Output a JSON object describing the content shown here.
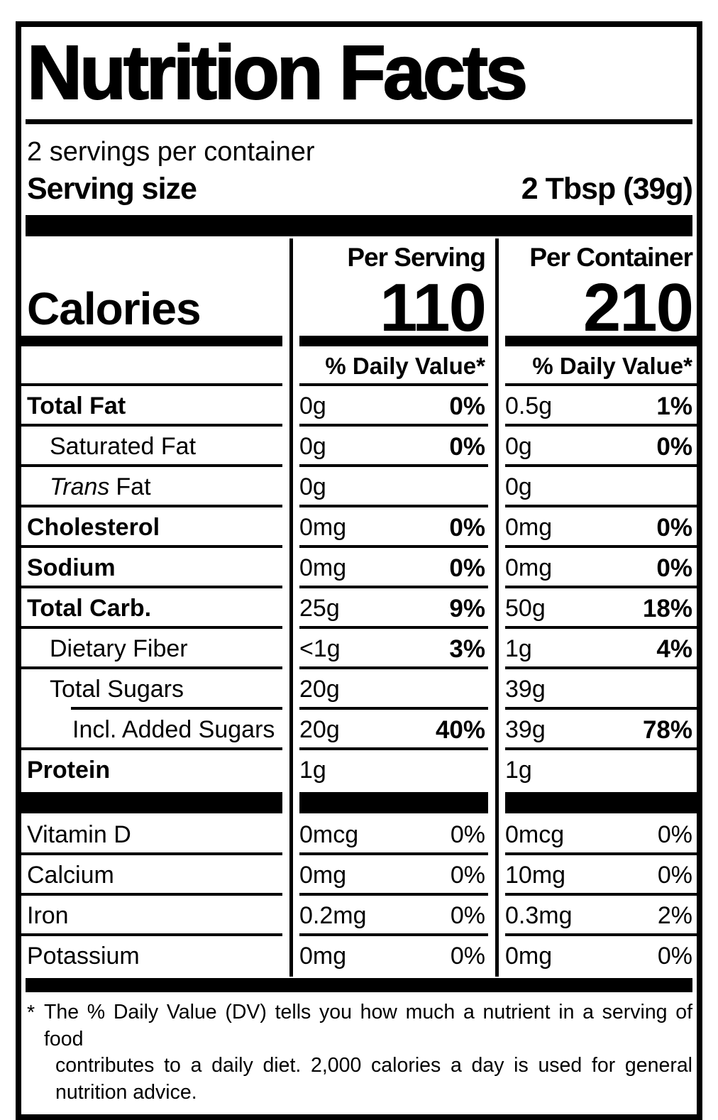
{
  "label": {
    "title": "Nutrition Facts",
    "servings_per_container": "2 servings per container",
    "serving_size_label": "Serving size",
    "serving_size_value": "2 Tbsp (39g)",
    "calories_label": "Calories",
    "calories_serving": "110",
    "calories_container": "210",
    "columns": {
      "serving": "Per Serving",
      "container": "Per Container"
    },
    "daily_value_header": "% Daily Value*",
    "rows": [
      {
        "name": "Total Fat",
        "serving_amount": "0g",
        "serving_dv": "0%",
        "container_amount": "0.5g",
        "container_dv": "1%"
      },
      {
        "name": "Saturated Fat",
        "serving_amount": "0g",
        "serving_dv": "0%",
        "container_amount": "0g",
        "container_dv": "0%"
      },
      {
        "name_italic": "Trans",
        "name": "Fat",
        "serving_amount": "0g",
        "serving_dv": "",
        "container_amount": "0g",
        "container_dv": ""
      },
      {
        "name": "Cholesterol",
        "serving_amount": "0mg",
        "serving_dv": "0%",
        "container_amount": "0mg",
        "container_dv": "0%"
      },
      {
        "name": "Sodium",
        "serving_amount": "0mg",
        "serving_dv": "0%",
        "container_amount": "0mg",
        "container_dv": "0%"
      },
      {
        "name": "Total Carb.",
        "serving_amount": "25g",
        "serving_dv": "9%",
        "container_amount": "50g",
        "container_dv": "18%"
      },
      {
        "name": "Dietary Fiber",
        "serving_amount": "<1g",
        "serving_dv": "3%",
        "container_amount": "1g",
        "container_dv": "4%"
      },
      {
        "name": "Total Sugars",
        "serving_amount": "20g",
        "serving_dv": "",
        "container_amount": "39g",
        "container_dv": ""
      },
      {
        "name": "Incl. Added Sugars",
        "serving_amount": "20g",
        "serving_dv": "40%",
        "container_amount": "39g",
        "container_dv": "78%"
      },
      {
        "name": "Protein",
        "serving_amount": "1g",
        "serving_dv": "",
        "container_amount": "1g",
        "container_dv": ""
      }
    ],
    "vitamin_rows": [
      {
        "name": "Vitamin D",
        "serving_amount": "0mcg",
        "serving_dv": "0%",
        "container_amount": "0mcg",
        "container_dv": "0%"
      },
      {
        "name": "Calcium",
        "serving_amount": "0mg",
        "serving_dv": "0%",
        "container_amount": "10mg",
        "container_dv": "0%"
      },
      {
        "name": "Iron",
        "serving_amount": "0.2mg",
        "serving_dv": "0%",
        "container_amount": "0.3mg",
        "container_dv": "2%"
      },
      {
        "name": "Potassium",
        "serving_amount": "0mg",
        "serving_dv": "0%",
        "container_amount": "0mg",
        "container_dv": "0%"
      }
    ],
    "footnote_marker": "*",
    "footnote_line1": "The % Daily Value (DV) tells you how much a nutrient in a serving of food",
    "footnote_line2": "contributes to a daily diet. 2,000 calories a day is used for general nutrition advice.",
    "colors": {
      "ink": "#000000",
      "background": "#ffffff"
    }
  }
}
